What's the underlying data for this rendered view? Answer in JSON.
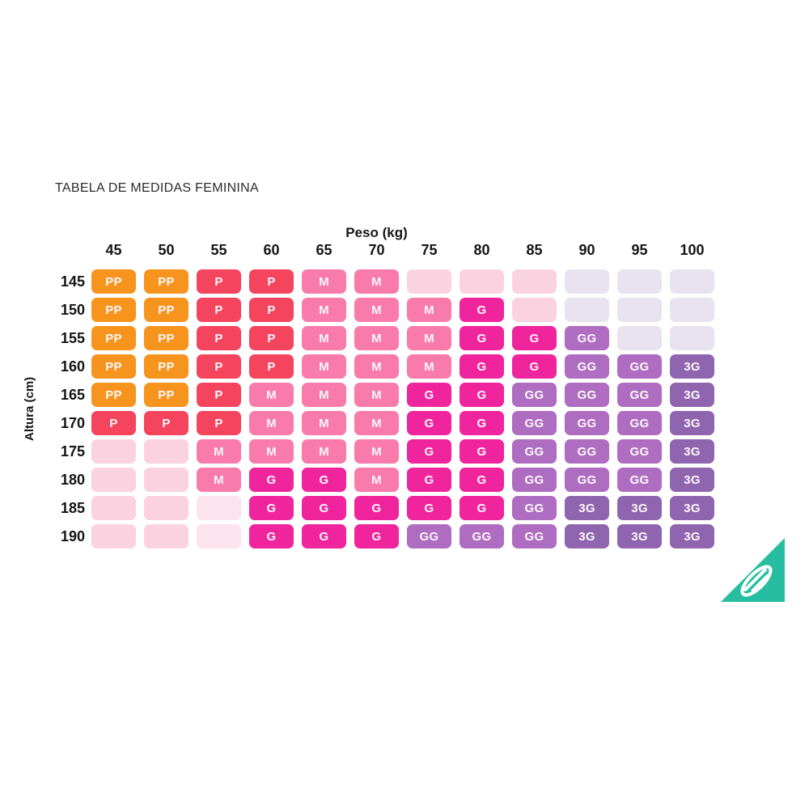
{
  "title": "TABELA DE MEDIDAS FEMININA",
  "chart_data": {
    "type": "heatmap",
    "title": "TABELA DE MEDIDAS FEMININA",
    "xlabel": "Peso (kg)",
    "ylabel": "Altura (cm)",
    "x_categories": [
      "45",
      "50",
      "55",
      "60",
      "65",
      "70",
      "75",
      "80",
      "85",
      "90",
      "95",
      "100"
    ],
    "y_categories": [
      "145",
      "150",
      "155",
      "160",
      "165",
      "170",
      "175",
      "180",
      "185",
      "190"
    ],
    "legend_sizes": [
      "PP",
      "P",
      "M",
      "G",
      "GG",
      "3G"
    ],
    "palette": {
      "PP": {
        "label": "PP",
        "bg": "#F7941E"
      },
      "P": {
        "label": "P",
        "bg": "#F4445E"
      },
      "M": {
        "label": "M",
        "bg": "#F87BAB"
      },
      "G": {
        "label": "G",
        "bg": "#F0249C"
      },
      "GG": {
        "label": "GG",
        "bg": "#AE6DC1"
      },
      "3G": {
        "label": "3G",
        "bg": "#8F65AF"
      },
      "_p": {
        "label": "",
        "bg": "#FAD2E0"
      },
      "_pl": {
        "label": "",
        "bg": "#FCE3ED"
      },
      "_l": {
        "label": "",
        "bg": "#E9E2EF"
      }
    },
    "cells": [
      [
        "PP",
        "PP",
        "P",
        "P",
        "M",
        "M",
        "_p",
        "_p",
        "_p",
        "_l",
        "_l",
        "_l"
      ],
      [
        "PP",
        "PP",
        "P",
        "P",
        "M",
        "M",
        "M",
        "G",
        "_p",
        "_l",
        "_l",
        "_l"
      ],
      [
        "PP",
        "PP",
        "P",
        "P",
        "M",
        "M",
        "M",
        "G",
        "G",
        "GG",
        "_l",
        "_l"
      ],
      [
        "PP",
        "PP",
        "P",
        "P",
        "M",
        "M",
        "M",
        "G",
        "G",
        "GG",
        "GG",
        "3G"
      ],
      [
        "PP",
        "PP",
        "P",
        "M",
        "M",
        "M",
        "G",
        "G",
        "GG",
        "GG",
        "GG",
        "3G"
      ],
      [
        "P",
        "P",
        "P",
        "M",
        "M",
        "M",
        "G",
        "G",
        "GG",
        "GG",
        "GG",
        "3G"
      ],
      [
        "_p",
        "_p",
        "M",
        "M",
        "M",
        "M",
        "G",
        "G",
        "GG",
        "GG",
        "GG",
        "3G"
      ],
      [
        "_p",
        "_p",
        "M",
        "G",
        "G",
        "M",
        "G",
        "G",
        "GG",
        "GG",
        "GG",
        "3G"
      ],
      [
        "_p",
        "_p",
        "_pl",
        "G",
        "G",
        "G",
        "G",
        "G",
        "GG",
        "3G",
        "3G",
        "3G"
      ],
      [
        "_p",
        "_p",
        "_pl",
        "G",
        "G",
        "G",
        "GG",
        "GG",
        "GG",
        "3G",
        "3G",
        "3G"
      ]
    ]
  },
  "logo": {
    "name": "feather-triangle-logo",
    "color": "#27BDA0"
  }
}
